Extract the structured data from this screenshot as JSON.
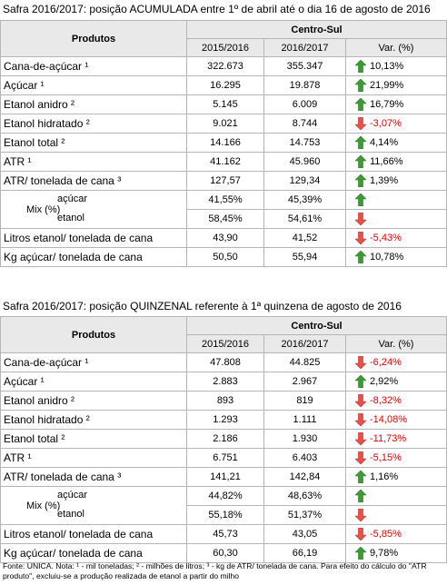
{
  "tables": [
    {
      "title": "Safra 2016/2017: posição ACUMULADA entre 1º de abril até o dia 16 de agosto de 2016",
      "header": {
        "products": "Produtos",
        "region": "Centro-Sul",
        "years": [
          "2015/2016",
          "2016/2017"
        ],
        "var": "Var. (%)"
      },
      "rows": [
        {
          "label": "Cana-de-açúcar ¹",
          "values": [
            "322.673",
            "355.347"
          ],
          "var": "10,13%",
          "arrow": "up"
        },
        {
          "label": "Açúcar ¹",
          "values": [
            "16.295",
            "19.878"
          ],
          "var": "21,99%",
          "arrow": "up"
        },
        {
          "label": "Etanol anidro ²",
          "values": [
            "5.145",
            "6.009"
          ],
          "var": "16,79%",
          "arrow": "up"
        },
        {
          "label": "Etanol hidratado ²",
          "values": [
            "9.021",
            "8.744"
          ],
          "var": "-3,07%",
          "arrow": "down"
        },
        {
          "label": "Etanol total ²",
          "values": [
            "14.166",
            "14.753"
          ],
          "var": "4,14%",
          "arrow": "up"
        },
        {
          "label": "ATR ¹",
          "values": [
            "41.162",
            "45.960"
          ],
          "var": "11,66%",
          "arrow": "up"
        },
        {
          "label": "ATR/ tonelada de cana ³",
          "values": [
            "127,57",
            "129,34"
          ],
          "var": "1,39%",
          "arrow": "up"
        },
        {
          "label": "Mix (%)",
          "sub": [
            {
              "label": "açúcar",
              "values": [
                "41,55%",
                "45,39%"
              ],
              "arrow": "up"
            },
            {
              "label": "etanol",
              "values": [
                "58,45%",
                "54,61%"
              ],
              "arrow": "down"
            }
          ]
        },
        {
          "label": "Litros etanol/ tonelada de cana",
          "values": [
            "43,90",
            "41,52"
          ],
          "var": "-5,43%",
          "arrow": "down"
        },
        {
          "label": "Kg açúcar/ tonelada de cana",
          "values": [
            "50,50",
            "55,94"
          ],
          "var": "10,78%",
          "arrow": "up"
        }
      ]
    },
    {
      "title": "Safra 2016/2017: posição QUINZENAL referente à 1ª quinzena de agosto de 2016",
      "header": {
        "products": "Produtos",
        "region": "Centro-Sul",
        "years": [
          "2015/2016",
          "2016/2017"
        ],
        "var": "Var. (%)"
      },
      "rows": [
        {
          "label": "Cana-de-açúcar ¹",
          "values": [
            "47.808",
            "44.825"
          ],
          "var": "-6,24%",
          "arrow": "down"
        },
        {
          "label": "Açúcar ¹",
          "values": [
            "2.883",
            "2.967"
          ],
          "var": "2,92%",
          "arrow": "up"
        },
        {
          "label": "Etanol anidro ²",
          "values": [
            "893",
            "819"
          ],
          "var": "-8,32%",
          "arrow": "down"
        },
        {
          "label": "Etanol hidratado ²",
          "values": [
            "1.293",
            "1.111"
          ],
          "var": "-14,08%",
          "arrow": "down"
        },
        {
          "label": "Etanol total ²",
          "values": [
            "2.186",
            "1.930"
          ],
          "var": "-11,73%",
          "arrow": "down"
        },
        {
          "label": "ATR ¹",
          "values": [
            "6.751",
            "6.403"
          ],
          "var": "-5,15%",
          "arrow": "down"
        },
        {
          "label": "ATR/ tonelada de cana ³",
          "values": [
            "141,21",
            "142,84"
          ],
          "var": "1,16%",
          "arrow": "up"
        },
        {
          "label": "Mix (%)",
          "sub": [
            {
              "label": "açúcar",
              "values": [
                "44,82%",
                "48,63%"
              ],
              "arrow": "up"
            },
            {
              "label": "etanol",
              "values": [
                "55,18%",
                "51,37%"
              ],
              "arrow": "down"
            }
          ]
        },
        {
          "label": "Litros etanol/ tonelada de cana",
          "values": [
            "45,73",
            "43,05"
          ],
          "var": "-5,85%",
          "arrow": "down"
        },
        {
          "label": "Kg açúcar/ tonelada de cana",
          "values": [
            "60,30",
            "66,19"
          ],
          "var": "9,78%",
          "arrow": "up"
        }
      ]
    }
  ],
  "footnote": "Fonte: UNICA. Nota: ¹ - mil toneladas; ² - milhões de litros; ³ - kg de ATR/ tonelada de cana. Para efeito do cálculo do \"ATR produto\", excluiu-se a produção realizada de etanol a partir do milho"
}
